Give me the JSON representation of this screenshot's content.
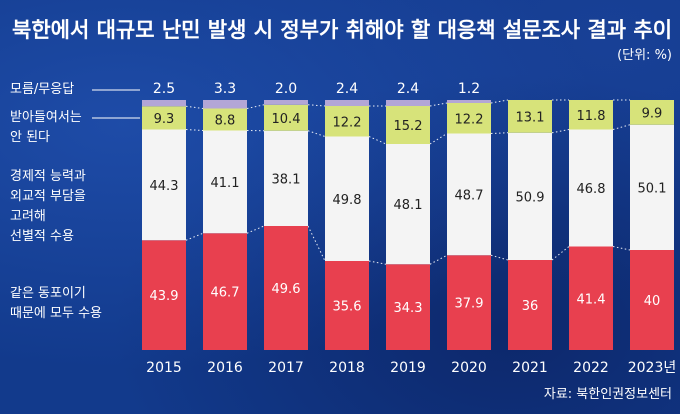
{
  "chart_data": {
    "type": "bar",
    "title": "북한에서 대규모 난민 발생 시 정부가 취해야 할 대응책 설문조사 결과 추이",
    "unit": "(단위: %)",
    "source": "자료: 북한인권정보센터",
    "categories": [
      "2015",
      "2016",
      "2017",
      "2018",
      "2019",
      "2020",
      "2021",
      "2022",
      "2023년"
    ],
    "series": [
      {
        "name": "같은 동포이기 때문에 모두 수용",
        "label_lines": [
          "같은 동포이기",
          "때문에 모두 수용"
        ],
        "values": [
          43.9,
          46.7,
          49.6,
          35.6,
          34.3,
          37.9,
          36,
          41.4,
          40
        ]
      },
      {
        "name": "경제적 능력과 외교적 부담을 고려해 선별적 수용",
        "label_lines": [
          "경제적 능력과",
          "외교적 부담을",
          "고려해",
          "선별적 수용"
        ],
        "values": [
          44.3,
          41.1,
          38.1,
          49.8,
          48.1,
          48.7,
          50.9,
          46.8,
          50.1
        ]
      },
      {
        "name": "받아들여서는 안 된다",
        "label_lines": [
          "받아들여서는",
          "안 된다"
        ],
        "values": [
          9.3,
          8.8,
          10.4,
          12.2,
          15.2,
          12.2,
          13.1,
          11.8,
          9.9
        ]
      },
      {
        "name": "모름/무응답",
        "label_lines": [
          "모름/무응답"
        ],
        "values": [
          2.5,
          3.3,
          2.0,
          2.4,
          2.4,
          1.2,
          null,
          null,
          null
        ]
      }
    ],
    "value_labels": {
      "모름/무응답": [
        "2.5",
        "3.3",
        "2.0",
        "2.4",
        "2.4",
        "1.2",
        "",
        "",
        ""
      ],
      "받아들여서는 안 된다": [
        "9.3",
        "8.8",
        "10.4",
        "12.2",
        "15.2",
        "12.2",
        "13.1",
        "11.8",
        "9.9"
      ],
      "경제적 능력과 외교적 부담을 고려해 선별적 수용": [
        "44.3",
        "41.1",
        "38.1",
        "49.8",
        "48.1",
        "48.7",
        "50.9",
        "46.8",
        "50.1"
      ],
      "같은 동포이기 때문에 모두 수용": [
        "43.9",
        "46.7",
        "49.6",
        "35.6",
        "34.3",
        "37.9",
        "36",
        "41.4",
        "40"
      ]
    },
    "stacked": true,
    "ylim": [
      0,
      100
    ],
    "colors": {
      "accept_all": "#e8404f",
      "selective": "#f4f4f4",
      "reject": "#d7e37a",
      "unknown": "#b3a6d6",
      "background": "#123a8c",
      "text": "#ffffff",
      "bar_text_dark": "#222222"
    }
  }
}
